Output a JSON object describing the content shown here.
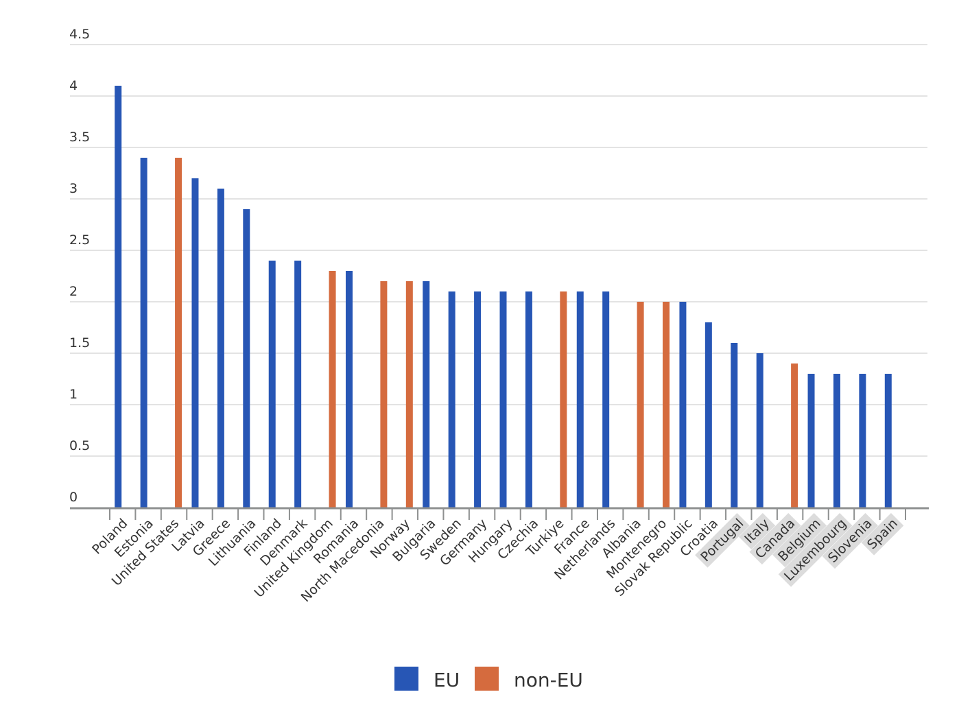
{
  "chart_data": {
    "type": "bar",
    "title": "",
    "xlabel": "",
    "ylabel": "",
    "ylim": [
      0,
      4.5
    ],
    "yticks": [
      "0",
      "0.5",
      "1",
      "1.5",
      "2",
      "2.5",
      "3",
      "3.5",
      "4",
      "4.5"
    ],
    "grid": true,
    "legend_position": "bottom",
    "categories": [
      "Poland",
      "Estonia",
      "United States",
      "Latvia",
      "Greece",
      "Lithuania",
      "Finland",
      "Denmark",
      "United Kingdom",
      "Romania",
      "North Macedonia",
      "Norway",
      "Bulgaria",
      "Sweden",
      "Germany",
      "Hungary",
      "Czechia",
      "Turkiye",
      "France",
      "Netherlands",
      "Albania",
      "Montenegro",
      "Slovak Republic",
      "Croatia",
      "Portugal",
      "Italy",
      "Canada",
      "Belgium",
      "Luxembourg",
      "Slovenia",
      "Spain"
    ],
    "highlighted_categories": [
      "Portugal",
      "Italy",
      "Canada",
      "Belgium",
      "Luxembourg",
      "Slovenia",
      "Spain"
    ],
    "series": [
      {
        "name": "EU",
        "color": "#2756b5",
        "values": [
          4.1,
          3.4,
          null,
          3.2,
          3.1,
          2.9,
          2.4,
          2.4,
          null,
          2.3,
          null,
          null,
          2.2,
          2.1,
          2.1,
          2.1,
          2.1,
          null,
          2.1,
          2.1,
          null,
          null,
          2.0,
          1.8,
          1.6,
          1.5,
          null,
          1.3,
          1.3,
          1.3,
          1.3
        ]
      },
      {
        "name": "non-EU",
        "color": "#d56b3e",
        "values": [
          null,
          null,
          3.4,
          null,
          null,
          null,
          null,
          null,
          2.3,
          null,
          2.2,
          2.2,
          null,
          null,
          null,
          null,
          null,
          2.1,
          null,
          null,
          2.0,
          2.0,
          null,
          null,
          null,
          null,
          1.4,
          null,
          null,
          null,
          null
        ]
      }
    ]
  }
}
